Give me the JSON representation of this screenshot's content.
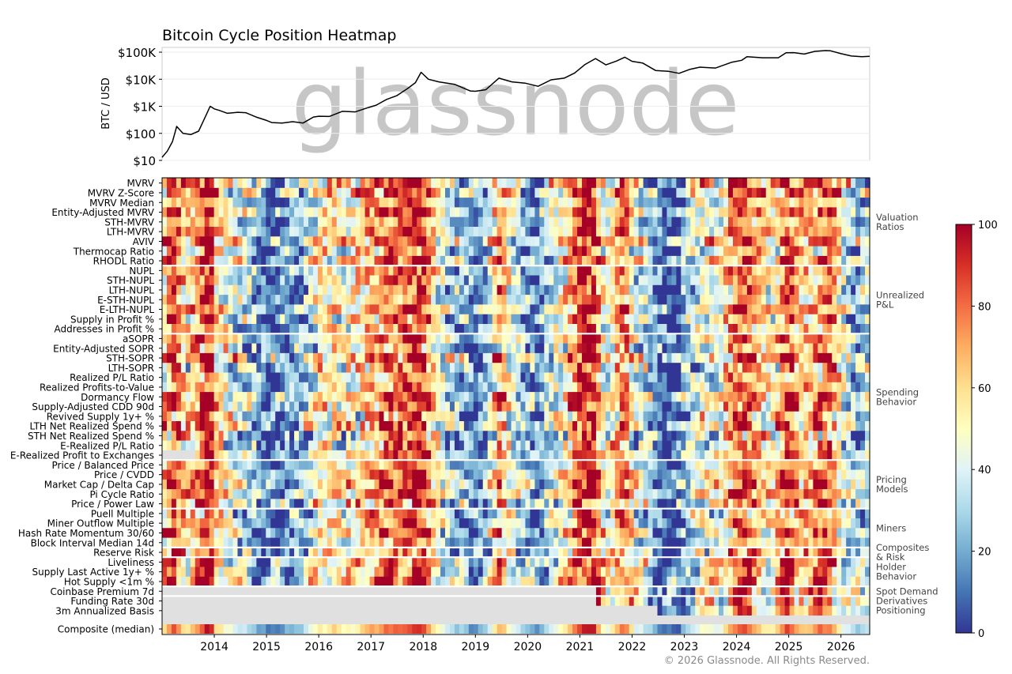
{
  "title": "Bitcoin Cycle Position Heatmap",
  "watermark": "glassnode",
  "copyright": "© 2026 Glassnode. All Rights Reserved.",
  "chart_data": [
    {
      "type": "line",
      "ylabel": "BTC / USD",
      "yscale": "log",
      "ylim": [
        10,
        150000
      ],
      "xlim": [
        2013.0,
        2026.55
      ],
      "yticks": [
        {
          "value": 10,
          "label": "$10"
        },
        {
          "value": 100,
          "label": "$100"
        },
        {
          "value": 1000,
          "label": "$1K"
        },
        {
          "value": 10000,
          "label": "$10K"
        },
        {
          "value": 100000,
          "label": "$100K"
        }
      ],
      "series": [
        {
          "color": "#000000",
          "x": [
            2013.0,
            2013.1,
            2013.2,
            2013.28,
            2013.4,
            2013.55,
            2013.7,
            2013.85,
            2013.92,
            2014.0,
            2014.1,
            2014.25,
            2014.45,
            2014.6,
            2014.8,
            2015.0,
            2015.1,
            2015.3,
            2015.5,
            2015.7,
            2015.9,
            2016.0,
            2016.2,
            2016.45,
            2016.7,
            2016.95,
            2017.1,
            2017.3,
            2017.5,
            2017.7,
            2017.85,
            2017.96,
            2018.1,
            2018.3,
            2018.6,
            2018.9,
            2019.0,
            2019.2,
            2019.45,
            2019.7,
            2019.95,
            2020.2,
            2020.45,
            2020.7,
            2020.9,
            2021.1,
            2021.3,
            2021.5,
            2021.7,
            2021.86,
            2022.0,
            2022.2,
            2022.45,
            2022.7,
            2022.9,
            2023.1,
            2023.3,
            2023.6,
            2023.9,
            2024.1,
            2024.2,
            2024.5,
            2024.8,
            2024.95,
            2025.1,
            2025.3,
            2025.5,
            2025.7,
            2025.8,
            2026.0,
            2026.2,
            2026.4,
            2026.55
          ],
          "y": [
            13,
            22,
            50,
            180,
            100,
            90,
            120,
            500,
            1000,
            800,
            700,
            550,
            600,
            580,
            400,
            300,
            250,
            240,
            270,
            240,
            400,
            430,
            420,
            650,
            620,
            900,
            1100,
            1800,
            2500,
            4500,
            7500,
            18000,
            10000,
            8000,
            6500,
            3700,
            3600,
            4100,
            11000,
            8000,
            7200,
            5500,
            9500,
            11000,
            17000,
            35000,
            58000,
            34000,
            47000,
            65000,
            46000,
            40000,
            21000,
            19500,
            16500,
            23000,
            28000,
            26000,
            42000,
            50000,
            68000,
            62000,
            62000,
            95000,
            96000,
            85000,
            107000,
            115000,
            112000,
            88000,
            72000,
            68000,
            70000
          ]
        }
      ]
    },
    {
      "type": "heatmap",
      "xlim": [
        2013.0,
        2026.55
      ],
      "xticks": [
        "2014",
        "2015",
        "2016",
        "2017",
        "2018",
        "2019",
        "2020",
        "2021",
        "2022",
        "2023",
        "2024",
        "2025",
        "2026"
      ],
      "colorbar": {
        "min": 0,
        "max": 100,
        "ticks": [
          "0",
          "20",
          "40",
          "60",
          "80",
          "100"
        ],
        "colormap": "RdYlBu_r",
        "missing_color": "#e0e0e0"
      },
      "groups": [
        {
          "name": "Valuation\nRatios",
          "rows": [
            "MVRV",
            "MVRV Z-Score",
            "MVRV Median",
            "Entity-Adjusted MVRV",
            "STH-MVRV",
            "LTH-MVRV",
            "AVIV",
            "Thermocap Ratio",
            "RHODL Ratio"
          ]
        },
        {
          "name": "Unrealized\nP&L",
          "rows": [
            "NUPL",
            "STH-NUPL",
            "LTH-NUPL",
            "E-STH-NUPL",
            "E-LTH-NUPL",
            "Supply in Profit %",
            "Addresses in Profit %"
          ]
        },
        {
          "name": "Spending\nBehavior",
          "rows": [
            "aSOPR",
            "Entity-Adjusted SOPR",
            "STH-SOPR",
            "LTH-SOPR",
            "Realized P/L Ratio",
            "Realized Profits-to-Value",
            "Dormancy Flow",
            "Supply-Adjusted CDD 90d",
            "Revived Supply 1y+ %",
            "LTH Net Realized Spend %",
            "STH Net Realized Spend %",
            "E-Realized P/L Ratio",
            "E-Realized Profit to Exchanges"
          ]
        },
        {
          "name": "Pricing\nModels",
          "rows": [
            "Price / Balanced Price",
            "Price / CVDD",
            "Market Cap / Delta Cap",
            "Pi Cycle Ratio",
            "Price / Power Law"
          ]
        },
        {
          "name": "Miners",
          "rows": [
            "Puell Multiple",
            "Miner Outflow Multiple",
            "Hash Rate Momentum 30/60",
            "Block Interval Median 14d"
          ]
        },
        {
          "name": "Composites\n& Risk",
          "rows": [
            "Reserve Risk"
          ]
        },
        {
          "name": "Holder\nBehavior",
          "rows": [
            "Liveliness",
            "Supply Last Active 1y+ %",
            "Hot Supply <1m %"
          ]
        },
        {
          "name": "Spot Demand",
          "rows": [
            "Coinbase Premium 7d"
          ]
        },
        {
          "name": "Derivatives\nPositioning",
          "rows": [
            "Funding Rate 30d",
            "3m Annualized Basis"
          ]
        }
      ],
      "composite_row": "Composite (median)",
      "data_start": {
        "E-Realized Profit to Exchanges": 2013.6,
        "Coinbase Premium 7d": 2021.3,
        "Funding Rate 30d": 2021.3,
        "3m Annualized Basis": 2022.45
      },
      "cycle_anchors": [
        {
          "x": 2013.0,
          "v": 55
        },
        {
          "x": 2013.2,
          "v": 88
        },
        {
          "x": 2013.45,
          "v": 55
        },
        {
          "x": 2013.6,
          "v": 65
        },
        {
          "x": 2013.8,
          "v": 88
        },
        {
          "x": 2013.92,
          "v": 97
        },
        {
          "x": 2014.05,
          "v": 60
        },
        {
          "x": 2014.3,
          "v": 45
        },
        {
          "x": 2014.6,
          "v": 35
        },
        {
          "x": 2014.8,
          "v": 22
        },
        {
          "x": 2015.0,
          "v": 12
        },
        {
          "x": 2015.3,
          "v": 14
        },
        {
          "x": 2015.6,
          "v": 22
        },
        {
          "x": 2015.85,
          "v": 40
        },
        {
          "x": 2016.0,
          "v": 50
        },
        {
          "x": 2016.4,
          "v": 55
        },
        {
          "x": 2016.7,
          "v": 50
        },
        {
          "x": 2016.95,
          "v": 68
        },
        {
          "x": 2017.3,
          "v": 80
        },
        {
          "x": 2017.55,
          "v": 78
        },
        {
          "x": 2017.8,
          "v": 88
        },
        {
          "x": 2017.97,
          "v": 97
        },
        {
          "x": 2018.1,
          "v": 70
        },
        {
          "x": 2018.3,
          "v": 45
        },
        {
          "x": 2018.6,
          "v": 30
        },
        {
          "x": 2018.9,
          "v": 15
        },
        {
          "x": 2019.0,
          "v": 12
        },
        {
          "x": 2019.2,
          "v": 25
        },
        {
          "x": 2019.45,
          "v": 72
        },
        {
          "x": 2019.7,
          "v": 40
        },
        {
          "x": 2019.95,
          "v": 30
        },
        {
          "x": 2020.2,
          "v": 10
        },
        {
          "x": 2020.4,
          "v": 38
        },
        {
          "x": 2020.7,
          "v": 52
        },
        {
          "x": 2020.95,
          "v": 80
        },
        {
          "x": 2021.1,
          "v": 95
        },
        {
          "x": 2021.3,
          "v": 88
        },
        {
          "x": 2021.5,
          "v": 42
        },
        {
          "x": 2021.75,
          "v": 70
        },
        {
          "x": 2021.88,
          "v": 78
        },
        {
          "x": 2022.05,
          "v": 45
        },
        {
          "x": 2022.3,
          "v": 32
        },
        {
          "x": 2022.5,
          "v": 12
        },
        {
          "x": 2022.9,
          "v": 8
        },
        {
          "x": 2023.1,
          "v": 35
        },
        {
          "x": 2023.4,
          "v": 50
        },
        {
          "x": 2023.7,
          "v": 45
        },
        {
          "x": 2023.95,
          "v": 75
        },
        {
          "x": 2024.2,
          "v": 88
        },
        {
          "x": 2024.45,
          "v": 60
        },
        {
          "x": 2024.7,
          "v": 52
        },
        {
          "x": 2024.95,
          "v": 85
        },
        {
          "x": 2025.2,
          "v": 62
        },
        {
          "x": 2025.45,
          "v": 68
        },
        {
          "x": 2025.7,
          "v": 80
        },
        {
          "x": 2025.85,
          "v": 72
        },
        {
          "x": 2026.05,
          "v": 40
        },
        {
          "x": 2026.3,
          "v": 28
        },
        {
          "x": 2026.55,
          "v": 32
        }
      ]
    }
  ]
}
